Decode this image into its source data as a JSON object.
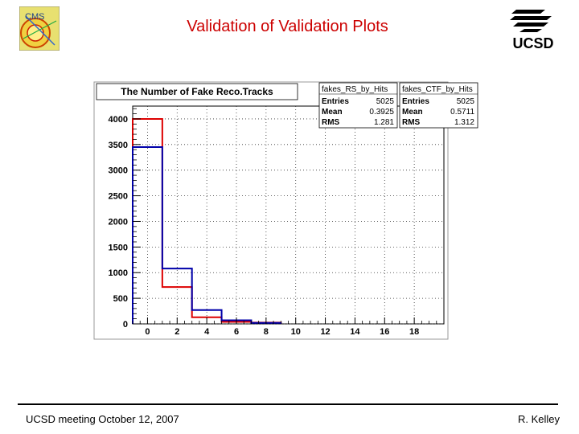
{
  "slide": {
    "title": "Validation of Validation Plots",
    "footer_left": "UCSD meeting October 12, 2007",
    "footer_right": "R. Kelley",
    "logo_right_text": "UCSD",
    "logo_left_text": "CMS"
  },
  "colors": {
    "title": "#cc0000",
    "rs": "#dd0000",
    "ctf": "#0000aa"
  },
  "chart_data": {
    "type": "histogram",
    "title": "The Number of Fake Reco.Tracks",
    "xlim": [
      -1,
      20
    ],
    "ylim": [
      0,
      4250
    ],
    "x_ticks": [
      0,
      2,
      4,
      6,
      8,
      10,
      12,
      14,
      16,
      18
    ],
    "y_ticks": [
      0,
      500,
      1000,
      1500,
      2000,
      2500,
      3000,
      3500,
      4000
    ],
    "grid": true,
    "bin_edges": [
      -1,
      1,
      3,
      5,
      7,
      9
    ],
    "series": [
      {
        "name": "fakes_RS_by_Hits",
        "color": "#dd0000",
        "values": [
          4000,
          720,
          130,
          40,
          25
        ],
        "stats": [
          [
            "Entries",
            "5025"
          ],
          [
            "Mean",
            "0.3925"
          ],
          [
            "RMS",
            "1.281"
          ]
        ]
      },
      {
        "name": "fakes_CTF_by_Hits",
        "color": "#0000aa",
        "values": [
          3450,
          1080,
          270,
          70,
          20
        ],
        "stats": [
          [
            "Entries",
            "5025"
          ],
          [
            "Mean",
            "0.5711"
          ],
          [
            "RMS",
            "1.312"
          ]
        ]
      }
    ]
  }
}
